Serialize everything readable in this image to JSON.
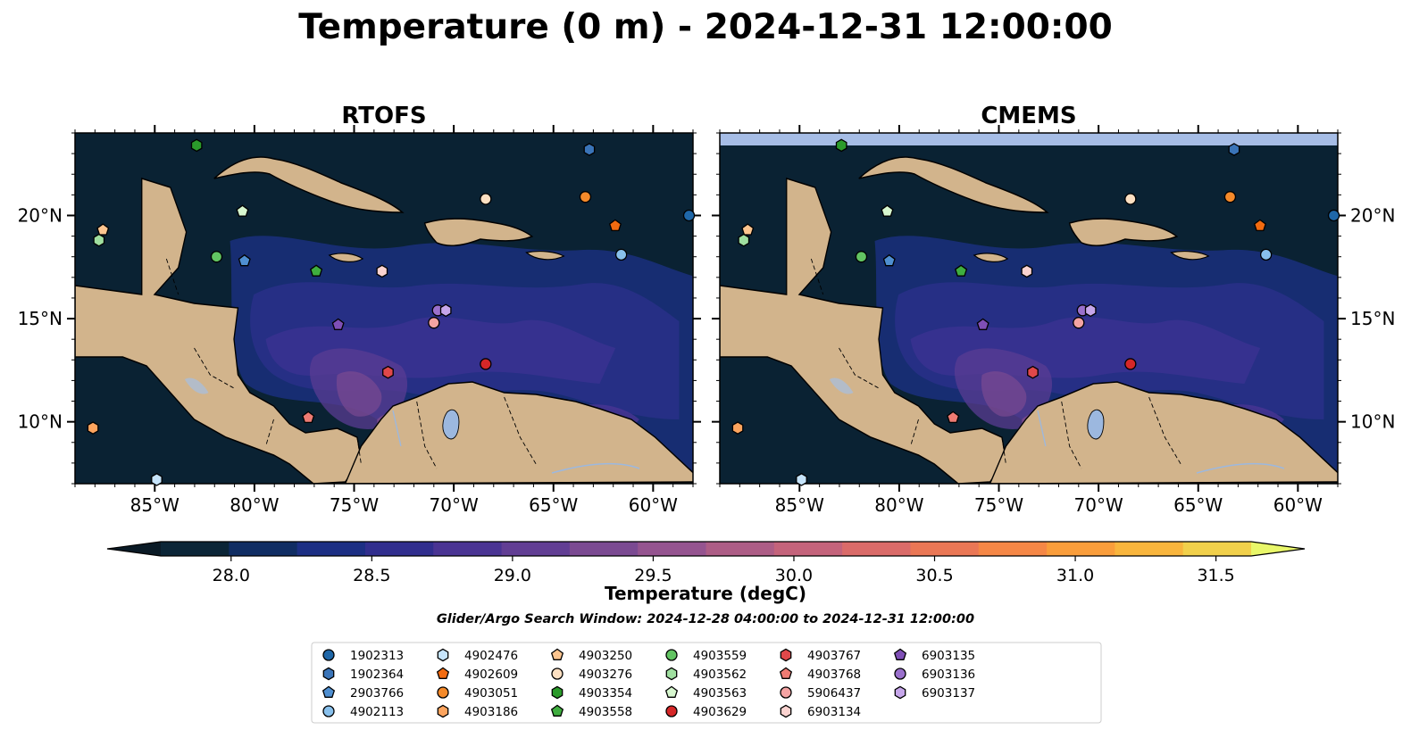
{
  "figure": {
    "title": "Temperature (0 m) - 2024-12-31 12:00:00",
    "search_window": "Glider/Argo Search Window: 2024-12-28 04:00:00 to 2024-12-31 12:00:00"
  },
  "colors": {
    "ocean_base": "#0a2233",
    "land": "#d2b48c",
    "lakes": "#9cb8df",
    "nodata_band": "#a6bde6"
  },
  "chart_data": [
    {
      "type": "heatmap",
      "title": "RTOFS",
      "variable": "Temperature (0 m)",
      "xlim": [
        -89,
        -58
      ],
      "ylim": [
        7,
        24
      ],
      "xticks": [
        -85,
        -80,
        -75,
        -70,
        -65,
        -60
      ],
      "xtick_labels": [
        "85°W",
        "80°W",
        "75°W",
        "70°W",
        "65°W",
        "60°W"
      ],
      "yticks": [
        10,
        15,
        20
      ],
      "ytick_labels": [
        "10°N",
        "15°N",
        "20°N"
      ],
      "ytick_side": "left"
    },
    {
      "type": "heatmap",
      "title": "CMEMS",
      "variable": "Temperature (0 m)",
      "xlim": [
        -89,
        -58
      ],
      "ylim": [
        7,
        24
      ],
      "xticks": [
        -85,
        -80,
        -75,
        -70,
        -65,
        -60
      ],
      "xtick_labels": [
        "85°W",
        "80°W",
        "75°W",
        "70°W",
        "65°W",
        "60°W"
      ],
      "yticks": [
        10,
        15,
        20
      ],
      "ytick_labels": [
        "10°N",
        "15°N",
        "20°N"
      ],
      "ytick_side": "right"
    }
  ],
  "colorbar": {
    "label": "Temperature (degC)",
    "min": 27.75,
    "max": 31.625,
    "ticks": [
      28.0,
      28.5,
      29.0,
      29.5,
      30.0,
      30.5,
      31.0,
      31.5
    ],
    "tick_labels": [
      "28.0",
      "28.5",
      "29.0",
      "29.5",
      "30.0",
      "30.5",
      "31.0",
      "31.5"
    ],
    "colors": [
      "#0b2537",
      "#102d63",
      "#1c2f84",
      "#312e8e",
      "#4a3493",
      "#623e94",
      "#7b4a92",
      "#955490",
      "#ad5d86",
      "#c4637b",
      "#da6b69",
      "#ea7755",
      "#f58746",
      "#f99d3b",
      "#f8b53d",
      "#f1d04b"
    ],
    "extend_low": "#0a1a26",
    "extend_high": "#e9f76a"
  },
  "floats": [
    {
      "id": "1902313",
      "marker": "circle",
      "color": "#1f67a8",
      "lon": -58.2,
      "lat": 20.0
    },
    {
      "id": "1902364",
      "marker": "hexagon",
      "color": "#3a74b8",
      "lon": -63.2,
      "lat": 23.2
    },
    {
      "id": "2903766",
      "marker": "pentagon",
      "color": "#4f8fd1",
      "lon": -80.5,
      "lat": 17.8
    },
    {
      "id": "4902113",
      "marker": "circle",
      "color": "#88c0ec",
      "lon": -61.6,
      "lat": 18.1
    },
    {
      "id": "4902476",
      "marker": "hexagon",
      "color": "#c6e4fb",
      "lon": -84.9,
      "lat": 7.2
    },
    {
      "id": "4902609",
      "marker": "pentagon",
      "color": "#f36b10",
      "lon": -61.9,
      "lat": 19.5
    },
    {
      "id": "4903051",
      "marker": "circle",
      "color": "#f58a2a",
      "lon": -63.4,
      "lat": 20.9
    },
    {
      "id": "4903186",
      "marker": "hexagon",
      "color": "#fca45e",
      "lon": -88.1,
      "lat": 9.7
    },
    {
      "id": "4903250",
      "marker": "pentagon",
      "color": "#fdc58f",
      "lon": -87.6,
      "lat": 19.3
    },
    {
      "id": "4903276",
      "marker": "circle",
      "color": "#fde0c2",
      "lon": -68.4,
      "lat": 20.8
    },
    {
      "id": "4903354",
      "marker": "hexagon",
      "color": "#2b9a2b",
      "lon": -82.9,
      "lat": 23.4
    },
    {
      "id": "4903558",
      "marker": "pentagon",
      "color": "#3fae3f",
      "lon": -76.9,
      "lat": 17.3
    },
    {
      "id": "4903559",
      "marker": "circle",
      "color": "#62c462",
      "lon": -81.9,
      "lat": 18.0
    },
    {
      "id": "4903562",
      "marker": "hexagon",
      "color": "#a0dfa0",
      "lon": -87.8,
      "lat": 18.8
    },
    {
      "id": "4903563",
      "marker": "pentagon",
      "color": "#d7f7cf",
      "lon": -80.6,
      "lat": 20.2
    },
    {
      "id": "4903629",
      "marker": "circle",
      "color": "#d62728",
      "lon": -68.4,
      "lat": 12.8
    },
    {
      "id": "4903767",
      "marker": "hexagon",
      "color": "#e0484a",
      "lon": -73.3,
      "lat": 12.4
    },
    {
      "id": "4903768",
      "marker": "pentagon",
      "color": "#ee7b73",
      "lon": -77.3,
      "lat": 10.2
    },
    {
      "id": "5906437",
      "marker": "circle",
      "color": "#f4a3a3",
      "lon": -71.0,
      "lat": 14.8
    },
    {
      "id": "6903134",
      "marker": "hexagon",
      "color": "#fbd3d0",
      "lon": -73.6,
      "lat": 17.3
    },
    {
      "id": "6903135",
      "marker": "pentagon",
      "color": "#7f4fb6",
      "lon": -75.8,
      "lat": 14.7
    },
    {
      "id": "6903136",
      "marker": "circle",
      "color": "#9a70cc",
      "lon": -70.8,
      "lat": 15.4
    },
    {
      "id": "6903137",
      "marker": "hexagon",
      "color": "#c6a6ea",
      "lon": -70.4,
      "lat": 15.4
    }
  ]
}
